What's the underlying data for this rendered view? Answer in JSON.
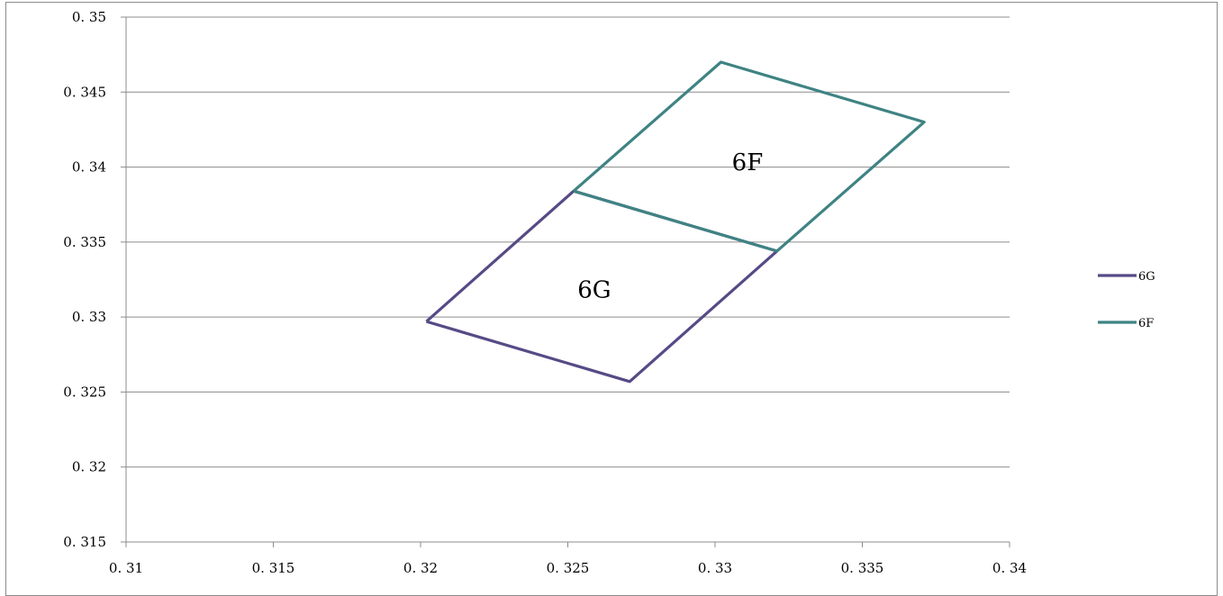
{
  "chart_data": {
    "type": "line",
    "title": "",
    "xlabel": "",
    "ylabel": "",
    "xlim": [
      0.31,
      0.34
    ],
    "ylim": [
      0.315,
      0.35
    ],
    "x_ticks": [
      0.31,
      0.315,
      0.32,
      0.325,
      0.33,
      0.335,
      0.34
    ],
    "y_ticks": [
      0.315,
      0.32,
      0.325,
      0.33,
      0.335,
      0.34,
      0.345,
      0.35
    ],
    "x_tick_labels": [
      "0. 31",
      "0. 315",
      "0. 32",
      "0. 325",
      "0. 33",
      "0. 335",
      "0. 34"
    ],
    "y_tick_labels": [
      "0. 315",
      "0. 32",
      "0. 325",
      "0. 33",
      "0. 335",
      "0. 34",
      "0. 345",
      "0. 35"
    ],
    "grid": "horizontal",
    "legend_position": "right",
    "series": [
      {
        "name": "6G",
        "color": "#574a86",
        "points": [
          [
            0.3202,
            0.3297
          ],
          [
            0.3271,
            0.3257
          ],
          [
            0.3321,
            0.3344
          ],
          [
            0.3252,
            0.3384
          ],
          [
            0.3202,
            0.3297
          ]
        ]
      },
      {
        "name": "6F",
        "color": "#3f8383",
        "points": [
          [
            0.3252,
            0.3384
          ],
          [
            0.3302,
            0.347
          ],
          [
            0.3371,
            0.343
          ],
          [
            0.3321,
            0.3344
          ],
          [
            0.3252,
            0.3384
          ]
        ]
      }
    ],
    "annotations": [
      {
        "text": "6F",
        "x": 0.3311,
        "y": 0.3398
      },
      {
        "text": "6G",
        "x": 0.3259,
        "y": 0.3313
      }
    ]
  }
}
